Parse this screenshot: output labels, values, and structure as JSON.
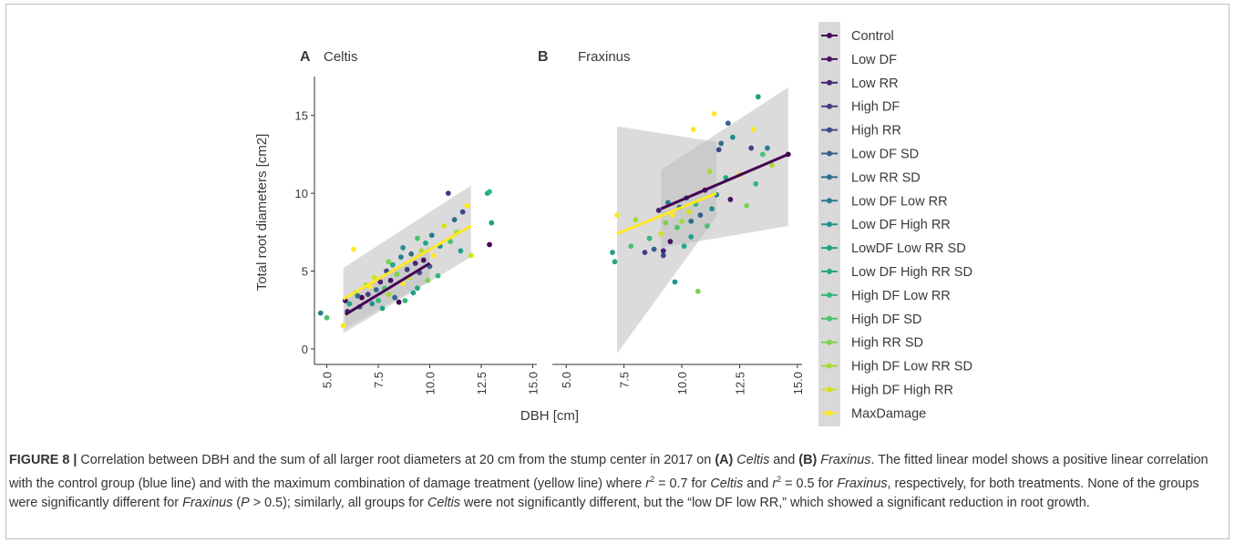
{
  "chart_data": [
    {
      "type": "scatter",
      "panel_letter": "A",
      "title": "Celtis",
      "xlabel": "DBH [cm]",
      "ylabel": "Total root diameters [cm2]",
      "xlim": [
        4.4,
        15.2
      ],
      "ylim": [
        -1.0,
        17.5
      ],
      "xticks": [
        "5.0",
        "7.5",
        "10.0",
        "12.5",
        "15.0"
      ],
      "yticks": [
        "0",
        "5",
        "10",
        "15"
      ],
      "grid": false,
      "points": [
        {
          "x": 4.7,
          "y": 2.3,
          "g": 7
        },
        {
          "x": 5.0,
          "y": 2.0,
          "g": 12
        },
        {
          "x": 5.8,
          "y": 1.5,
          "g": 16
        },
        {
          "x": 5.9,
          "y": 3.1,
          "g": 1
        },
        {
          "x": 6.0,
          "y": 2.4,
          "g": 2
        },
        {
          "x": 6.1,
          "y": 2.9,
          "g": 10
        },
        {
          "x": 6.3,
          "y": 6.4,
          "g": 16
        },
        {
          "x": 6.4,
          "y": 3.6,
          "g": 13
        },
        {
          "x": 6.6,
          "y": 2.7,
          "g": 5
        },
        {
          "x": 6.7,
          "y": 3.3,
          "g": 0
        },
        {
          "x": 6.9,
          "y": 4.1,
          "g": 14
        },
        {
          "x": 7.0,
          "y": 3.5,
          "g": 3
        },
        {
          "x": 7.2,
          "y": 2.9,
          "g": 8
        },
        {
          "x": 7.3,
          "y": 4.6,
          "g": 15
        },
        {
          "x": 7.4,
          "y": 3.8,
          "g": 6
        },
        {
          "x": 7.5,
          "y": 3.1,
          "g": 11
        },
        {
          "x": 7.6,
          "y": 4.3,
          "g": 2
        },
        {
          "x": 7.7,
          "y": 2.6,
          "g": 9
        },
        {
          "x": 7.8,
          "y": 3.9,
          "g": 12
        },
        {
          "x": 7.9,
          "y": 5.0,
          "g": 4
        },
        {
          "x": 8.0,
          "y": 3.5,
          "g": 14
        },
        {
          "x": 8.1,
          "y": 4.4,
          "g": 1
        },
        {
          "x": 8.2,
          "y": 5.4,
          "g": 10
        },
        {
          "x": 8.3,
          "y": 3.3,
          "g": 5
        },
        {
          "x": 8.4,
          "y": 4.8,
          "g": 13
        },
        {
          "x": 8.5,
          "y": 3.0,
          "g": 0
        },
        {
          "x": 8.6,
          "y": 5.9,
          "g": 7
        },
        {
          "x": 8.7,
          "y": 4.2,
          "g": 16
        },
        {
          "x": 8.7,
          "y": 6.5,
          "g": 8
        },
        {
          "x": 8.8,
          "y": 3.1,
          "g": 11
        },
        {
          "x": 8.9,
          "y": 5.1,
          "g": 3
        },
        {
          "x": 9.0,
          "y": 4.6,
          "g": 15
        },
        {
          "x": 9.1,
          "y": 6.1,
          "g": 6
        },
        {
          "x": 9.2,
          "y": 3.6,
          "g": 9
        },
        {
          "x": 9.3,
          "y": 5.5,
          "g": 2
        },
        {
          "x": 9.4,
          "y": 7.1,
          "g": 12
        },
        {
          "x": 9.5,
          "y": 4.9,
          "g": 4
        },
        {
          "x": 9.6,
          "y": 6.3,
          "g": 14
        },
        {
          "x": 9.7,
          "y": 5.7,
          "g": 1
        },
        {
          "x": 9.8,
          "y": 6.8,
          "g": 10
        },
        {
          "x": 9.9,
          "y": 4.4,
          "g": 13
        },
        {
          "x": 10.0,
          "y": 5.3,
          "g": 5
        },
        {
          "x": 10.1,
          "y": 7.3,
          "g": 7
        },
        {
          "x": 10.2,
          "y": 6.0,
          "g": 16
        },
        {
          "x": 10.4,
          "y": 4.7,
          "g": 11
        },
        {
          "x": 10.5,
          "y": 6.6,
          "g": 8
        },
        {
          "x": 10.7,
          "y": 7.9,
          "g": 15
        },
        {
          "x": 10.9,
          "y": 10.0,
          "g": 3
        },
        {
          "x": 11.0,
          "y": 6.9,
          "g": 12
        },
        {
          "x": 11.2,
          "y": 8.3,
          "g": 6
        },
        {
          "x": 11.3,
          "y": 7.5,
          "g": 14
        },
        {
          "x": 11.5,
          "y": 6.3,
          "g": 9
        },
        {
          "x": 11.6,
          "y": 8.8,
          "g": 4
        },
        {
          "x": 11.8,
          "y": 9.2,
          "g": 16
        },
        {
          "x": 12.0,
          "y": 6.0,
          "g": 15
        },
        {
          "x": 12.8,
          "y": 10.0,
          "g": 10
        },
        {
          "x": 12.9,
          "y": 10.1,
          "g": 11
        },
        {
          "x": 12.9,
          "y": 6.7,
          "g": 0
        },
        {
          "x": 13.0,
          "y": 8.1,
          "g": 9
        },
        {
          "x": 6.5,
          "y": 3.4,
          "g": 6
        },
        {
          "x": 7.1,
          "y": 4.0,
          "g": 16
        },
        {
          "x": 8.0,
          "y": 5.6,
          "g": 13
        },
        {
          "x": 9.4,
          "y": 3.9,
          "g": 10
        }
      ],
      "fit_lines": [
        {
          "name": "Control",
          "x": [
            5.9,
            10.0
          ],
          "y": [
            2.2,
            5.5
          ],
          "band_lo": [
            1.3,
            4.4
          ],
          "band_hi": [
            3.1,
            6.6
          ]
        },
        {
          "name": "MaxDamage",
          "x": [
            5.8,
            12.0
          ],
          "y": [
            3.2,
            7.9
          ],
          "band_lo": [
            1.0,
            5.9
          ],
          "band_hi": [
            5.2,
            10.5
          ]
        }
      ]
    },
    {
      "type": "scatter",
      "panel_letter": "B",
      "title": "Fraxinus",
      "xlabel": "DBH [cm]",
      "ylabel": "Total root diameters [cm2]",
      "xlim": [
        4.4,
        15.2
      ],
      "ylim": [
        -1.0,
        17.5
      ],
      "xticks": [
        "5.0",
        "7.5",
        "10.0",
        "12.5",
        "15.0"
      ],
      "yticks": [
        "0",
        "5",
        "10",
        "15"
      ],
      "grid": false,
      "points": [
        {
          "x": 7.0,
          "y": 6.2,
          "g": 9
        },
        {
          "x": 7.1,
          "y": 5.6,
          "g": 10
        },
        {
          "x": 7.2,
          "y": 8.6,
          "g": 16
        },
        {
          "x": 7.8,
          "y": 6.6,
          "g": 12
        },
        {
          "x": 8.0,
          "y": 8.3,
          "g": 14
        },
        {
          "x": 8.4,
          "y": 6.2,
          "g": 3
        },
        {
          "x": 8.6,
          "y": 7.1,
          "g": 11
        },
        {
          "x": 8.8,
          "y": 6.4,
          "g": 5
        },
        {
          "x": 9.0,
          "y": 8.9,
          "g": 2
        },
        {
          "x": 9.1,
          "y": 7.4,
          "g": 15
        },
        {
          "x": 9.2,
          "y": 6.0,
          "g": 4
        },
        {
          "x": 9.3,
          "y": 8.1,
          "g": 13
        },
        {
          "x": 9.4,
          "y": 9.4,
          "g": 7
        },
        {
          "x": 9.5,
          "y": 6.9,
          "g": 1
        },
        {
          "x": 9.6,
          "y": 8.6,
          "g": 16
        },
        {
          "x": 9.7,
          "y": 4.3,
          "g": 8
        },
        {
          "x": 9.8,
          "y": 7.8,
          "g": 12
        },
        {
          "x": 9.9,
          "y": 9.1,
          "g": 6
        },
        {
          "x": 10.0,
          "y": 8.2,
          "g": 14
        },
        {
          "x": 10.1,
          "y": 6.6,
          "g": 10
        },
        {
          "x": 10.2,
          "y": 9.7,
          "g": 3
        },
        {
          "x": 10.3,
          "y": 8.8,
          "g": 15
        },
        {
          "x": 10.4,
          "y": 7.2,
          "g": 9
        },
        {
          "x": 10.5,
          "y": 14.1,
          "g": 16
        },
        {
          "x": 10.6,
          "y": 9.3,
          "g": 11
        },
        {
          "x": 10.7,
          "y": 3.7,
          "g": 13
        },
        {
          "x": 10.8,
          "y": 8.6,
          "g": 5
        },
        {
          "x": 11.0,
          "y": 10.2,
          "g": 2
        },
        {
          "x": 11.1,
          "y": 7.9,
          "g": 12
        },
        {
          "x": 11.2,
          "y": 11.4,
          "g": 14
        },
        {
          "x": 11.4,
          "y": 15.1,
          "g": 16
        },
        {
          "x": 11.5,
          "y": 9.9,
          "g": 7
        },
        {
          "x": 11.6,
          "y": 12.8,
          "g": 4
        },
        {
          "x": 11.7,
          "y": 13.2,
          "g": 6
        },
        {
          "x": 11.9,
          "y": 11.0,
          "g": 10
        },
        {
          "x": 12.0,
          "y": 14.5,
          "g": 5
        },
        {
          "x": 12.1,
          "y": 9.6,
          "g": 1
        },
        {
          "x": 12.2,
          "y": 13.6,
          "g": 8
        },
        {
          "x": 12.5,
          "y": 11.2,
          "g": 15
        },
        {
          "x": 12.8,
          "y": 9.2,
          "g": 13
        },
        {
          "x": 13.0,
          "y": 12.9,
          "g": 3
        },
        {
          "x": 13.1,
          "y": 14.1,
          "g": 16
        },
        {
          "x": 13.2,
          "y": 10.6,
          "g": 11
        },
        {
          "x": 13.3,
          "y": 16.2,
          "g": 9
        },
        {
          "x": 13.5,
          "y": 12.5,
          "g": 12
        },
        {
          "x": 13.7,
          "y": 12.9,
          "g": 7
        },
        {
          "x": 13.9,
          "y": 11.8,
          "g": 14
        },
        {
          "x": 14.6,
          "y": 12.5,
          "g": 0
        },
        {
          "x": 9.2,
          "y": 6.3,
          "g": 2
        },
        {
          "x": 10.4,
          "y": 8.2,
          "g": 6
        },
        {
          "x": 11.3,
          "y": 9.0,
          "g": 8
        }
      ],
      "fit_lines": [
        {
          "name": "Control",
          "x": [
            9.1,
            14.6
          ],
          "y": [
            9.0,
            12.5
          ],
          "band_lo": [
            6.5,
            7.9
          ],
          "band_hi": [
            11.5,
            16.8
          ]
        },
        {
          "name": "MaxDamage",
          "x": [
            7.2,
            11.5
          ],
          "y": [
            7.4,
            10.0
          ],
          "band_lo": [
            -0.3,
            8.5
          ],
          "band_hi": [
            14.3,
            13.3
          ]
        }
      ]
    }
  ],
  "legend": {
    "entries": [
      "Control",
      "Low DF",
      "Low RR",
      "High DF",
      "High RR",
      "Low DF SD",
      "Low RR SD",
      "Low DF Low RR",
      "Low DF High RR",
      "LowDF Low RR SD",
      "Low DF High RR SD",
      "High DF Low RR",
      "High DF SD",
      "High RR SD",
      "High DF Low RR SD",
      "High DF High RR",
      "MaxDamage"
    ],
    "colors": [
      "#440154",
      "#471365",
      "#482475",
      "#433e85",
      "#3e4989",
      "#35608d",
      "#2f6c8e",
      "#277f8e",
      "#21918c",
      "#1fa187",
      "#22a884",
      "#35b779",
      "#4ac16d",
      "#7ad151",
      "#a5db36",
      "#d2e21b",
      "#fde725"
    ],
    "placement": "right"
  },
  "colors": {
    "band": "#bdbdbd",
    "control_line": "#440154",
    "maxdamage_line": "#fde725",
    "axis": "#333333"
  },
  "caption": {
    "label": "FIGURE 8 |",
    "t1": " Correlation between DBH and the sum of all larger root diameters at 20 cm from the stump center in 2017 on ",
    "a": "(A)",
    "celtis1": "Celtis",
    "t2": " and ",
    "b": "(B)",
    "fraxinus1": "Fraxinus",
    "t3": ". The fitted linear model shows a positive linear correlation with the control group (blue line) and with the maximum combination of damage treatment (yellow line) where ",
    "r1": "r",
    "sup1": "2",
    "t4": " = 0.7 for ",
    "celtis2": "Celtis",
    "t5": " and ",
    "r2": "r",
    "sup2": "2",
    "t6": " = 0.5 for ",
    "fraxinus2": "Fraxinus",
    "t7": ", respectively, for both treatments. None of the groups were significantly different for ",
    "fraxinus3": "Fraxinus",
    "t8": " (",
    "p": "P",
    "t9": " > 0.5); similarly, all groups for ",
    "celtis3": "Celtis",
    "t10": " were not significantly different, but the “low DF low RR,” which showed a significant reduction in root growth."
  }
}
